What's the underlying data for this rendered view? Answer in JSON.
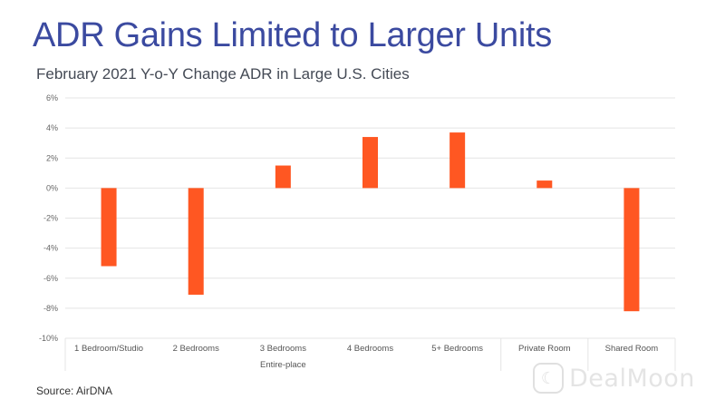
{
  "title": "ADR Gains Limited to Larger Units",
  "subtitle": "February 2021 Y-o-Y Change ADR in Large U.S. Cities",
  "source": "Source: AirDNA",
  "watermark": {
    "icon": "dealmoon-logo-icon",
    "text": "DealMoon"
  },
  "colors": {
    "bar": "#ff5722",
    "grid": "#e4e4e4",
    "title": "#3b4aa0"
  },
  "chart_data": {
    "type": "bar",
    "title": "February 2021 Y-o-Y Change ADR in Large U.S. Cities",
    "categories": [
      "1 Bedroom/Studio",
      "2 Bedrooms",
      "3 Bedrooms",
      "4 Bedrooms",
      "5+ Bedrooms",
      "Private Room",
      "Shared Room"
    ],
    "groups": [
      {
        "label": "Entire-place",
        "categories": [
          "1 Bedroom/Studio",
          "2 Bedrooms",
          "3 Bedrooms",
          "4 Bedrooms",
          "5+ Bedrooms"
        ]
      }
    ],
    "values": [
      -5.2,
      -7.1,
      1.5,
      3.4,
      3.7,
      0.5,
      -8.2
    ],
    "unit": "%",
    "ylim": [
      -10,
      6
    ],
    "yticks": [
      -10,
      -8,
      -6,
      -4,
      -2,
      0,
      2,
      4,
      6
    ],
    "ytick_labels": [
      "-10%",
      "-8%",
      "-6%",
      "-4%",
      "-2%",
      "0%",
      "2%",
      "4%",
      "6%"
    ],
    "grid": true,
    "legend": "none"
  }
}
